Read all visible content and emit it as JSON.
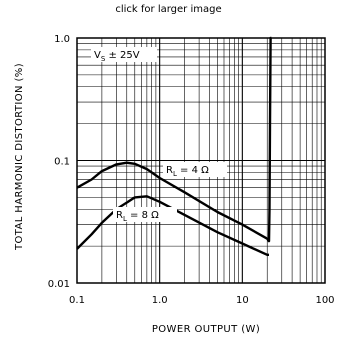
{
  "caption": "click for larger image",
  "chart_data": {
    "type": "line",
    "xscale": "log",
    "yscale": "log",
    "xlim": [
      0.1,
      100
    ],
    "ylim": [
      0.01,
      1.0
    ],
    "grid": true,
    "xlabel": "POWER OUTPUT (W)",
    "ylabel": "TOTAL HARMONIC DISTORTION (%)",
    "xticks": [
      "0.1",
      "1.0",
      "10",
      "100"
    ],
    "yticks": [
      "0.01",
      "0.1",
      "1.0"
    ],
    "annotations": {
      "vs": {
        "main": "V",
        "sub": "S",
        "rest": " ± 25V"
      }
    },
    "series": [
      {
        "label": {
          "main": "R",
          "sub": "L",
          "rest": " = 4 Ω"
        },
        "x": [
          0.1,
          0.15,
          0.2,
          0.3,
          0.4,
          0.5,
          0.7,
          1.0,
          2.0,
          5.0,
          10.0,
          20.0,
          21.0,
          21.3,
          21.6,
          22.0,
          22.5
        ],
        "y": [
          0.06,
          0.07,
          0.082,
          0.093,
          0.096,
          0.094,
          0.085,
          0.072,
          0.055,
          0.038,
          0.03,
          0.023,
          0.022,
          0.04,
          0.2,
          1.0,
          1.0
        ]
      },
      {
        "label": {
          "main": "R",
          "sub": "L",
          "rest": " = 8 Ω"
        },
        "x": [
          0.1,
          0.15,
          0.2,
          0.3,
          0.5,
          0.7,
          1.0,
          2.0,
          5.0,
          10.0,
          20.0,
          21.0
        ],
        "y": [
          0.019,
          0.025,
          0.031,
          0.04,
          0.05,
          0.051,
          0.046,
          0.036,
          0.026,
          0.021,
          0.017,
          0.017
        ]
      }
    ]
  }
}
